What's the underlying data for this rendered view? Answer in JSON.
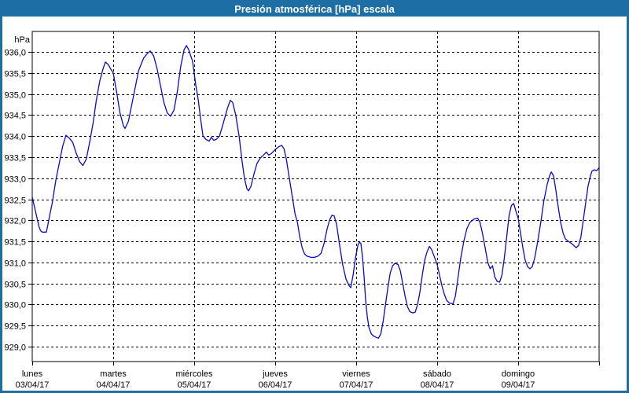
{
  "window": {
    "title": "Presión atmosférica [hPa] escala"
  },
  "colors": {
    "titlebar_bg": "#1c6ea4",
    "titlebar_text": "#ffffff",
    "frame_border": "#1c6ea4",
    "plot_background": "#ffffff",
    "line": "#0a0ac8",
    "grid": "#000000",
    "axis": "#000000",
    "text": "#000000"
  },
  "chart_data": {
    "type": "line",
    "title": "Presión atmosférica [hPa] escala",
    "grid": "dashed",
    "legend_position": "none",
    "y_axis": {
      "unit_label": "hPa",
      "min": 929.0,
      "max": 936.0,
      "tick_step": 0.5,
      "tick_labels_top_to_bottom": [
        "936,0",
        "935,5",
        "935,0",
        "934,5",
        "934,0",
        "933,5",
        "933,0",
        "932,5",
        "932,0",
        "931,5",
        "931,0",
        "930,5",
        "930,0",
        "929,5",
        "929,0"
      ]
    },
    "x_axis": {
      "range_hours": [
        0,
        168
      ],
      "days": [
        {
          "name": "lunes",
          "date": "03/04/17"
        },
        {
          "name": "martes",
          "date": "04/04/17"
        },
        {
          "name": "miércoles",
          "date": "05/04/17"
        },
        {
          "name": "jueves",
          "date": "06/04/17"
        },
        {
          "name": "viernes",
          "date": "07/04/17"
        },
        {
          "name": "sábado",
          "date": "08/04/17"
        },
        {
          "name": "domingo",
          "date": "09/04/17"
        }
      ]
    },
    "series": [
      {
        "name": "Presión atmosférica [hPa]",
        "hours": [
          0,
          1,
          2,
          2.5,
          3,
          4.2,
          5,
          6,
          7,
          8,
          9,
          10,
          11,
          12,
          13,
          14,
          15,
          16,
          17,
          18,
          19,
          20,
          21,
          21.7,
          22.5,
          23.2,
          24,
          25,
          26,
          27,
          27.5,
          28.5,
          30,
          31.5,
          33,
          34,
          35,
          36,
          37,
          38,
          39,
          40,
          41,
          42,
          43,
          44,
          45,
          45.7,
          46.4,
          47,
          47.5,
          48.5,
          49.2,
          49.9,
          50.6,
          51.5,
          52.4,
          53.1,
          53.8,
          54.5,
          55.5,
          56.6,
          57.8,
          58.7,
          59.4,
          60.3,
          61.3,
          62.2,
          62.9,
          63.6,
          64.1,
          64.8,
          65.7,
          66.6,
          67.6,
          68.5,
          69.4,
          70.1,
          70.8,
          72,
          72.9,
          73.9,
          74.6,
          75.3,
          76.2,
          77.2,
          77.9,
          78.6,
          79.3,
          80,
          80.7,
          81.4,
          82.6,
          83.7,
          84.7,
          85.6,
          86.5,
          87.4,
          88.1,
          88.8,
          89.5,
          90.2,
          91.1,
          92,
          93,
          93.9,
          94.4,
          95.1,
          95.8,
          96.5,
          96.9,
          97.4,
          97.9,
          98.4,
          98.8,
          99.3,
          99.8,
          100.5,
          101.2,
          101.9,
          102.6,
          103.3,
          104,
          104.7,
          105.4,
          106.1,
          106.8,
          107.5,
          108.4,
          109.1,
          109.8,
          110.5,
          111.2,
          111.9,
          112.8,
          113.5,
          114.2,
          114.9,
          115.6,
          116.3,
          117,
          117.7,
          118.4,
          119.1,
          120,
          120.7,
          121.4,
          122.1,
          122.8,
          123.7,
          124.7,
          125.4,
          126.1,
          127,
          127.9,
          128.8,
          129.7,
          130.9,
          132,
          132.7,
          133.4,
          134.1,
          135,
          135.7,
          136.4,
          137.1,
          137.8,
          138.5,
          139.2,
          139.9,
          140.6,
          141.3,
          142,
          142.7,
          143.4,
          144,
          144.7,
          145.4,
          146.1,
          146.8,
          147.5,
          148.2,
          148.9,
          149.8,
          150.7,
          151.6,
          152.6,
          153.3,
          153.8,
          154.5,
          155.2,
          155.9,
          156.6,
          157.3,
          158,
          158.9,
          159.8,
          160.5,
          161.2,
          161.9,
          162.6,
          163.3,
          164,
          164.7,
          165.4,
          165.9,
          166.6,
          167.3,
          168
        ],
        "hpa": [
          932.55,
          932.2,
          931.85,
          931.75,
          931.72,
          931.72,
          932.05,
          932.45,
          932.95,
          933.35,
          933.75,
          934.02,
          933.95,
          933.85,
          933.6,
          933.4,
          933.3,
          933.45,
          933.85,
          934.3,
          934.85,
          935.3,
          935.6,
          935.76,
          935.7,
          935.6,
          935.5,
          935.05,
          934.55,
          934.25,
          934.18,
          934.35,
          934.95,
          935.55,
          935.85,
          935.95,
          936.02,
          935.9,
          935.6,
          935.2,
          934.8,
          934.55,
          934.47,
          934.62,
          935.05,
          935.65,
          936.05,
          936.15,
          936.05,
          935.9,
          935.78,
          935.2,
          934.85,
          934.4,
          934.0,
          933.92,
          933.88,
          933.97,
          933.9,
          933.92,
          934.0,
          934.3,
          934.65,
          934.85,
          934.8,
          934.5,
          934.0,
          933.4,
          933.0,
          932.75,
          932.7,
          932.8,
          933.1,
          933.35,
          933.48,
          933.55,
          933.62,
          933.55,
          933.58,
          933.68,
          933.74,
          933.78,
          933.7,
          933.45,
          933.0,
          932.5,
          932.15,
          931.95,
          931.6,
          931.35,
          931.2,
          931.15,
          931.12,
          931.12,
          931.15,
          931.22,
          931.45,
          931.8,
          932.0,
          932.12,
          932.1,
          931.9,
          931.4,
          930.95,
          930.6,
          930.45,
          930.4,
          930.7,
          931.1,
          931.4,
          931.48,
          931.45,
          931.1,
          930.6,
          930.1,
          929.7,
          929.45,
          929.3,
          929.25,
          929.22,
          929.2,
          929.3,
          929.6,
          930.0,
          930.4,
          930.75,
          930.92,
          930.98,
          930.95,
          930.8,
          930.5,
          930.2,
          929.95,
          929.83,
          929.8,
          929.82,
          930.0,
          930.3,
          930.7,
          931.05,
          931.25,
          931.38,
          931.3,
          931.15,
          930.95,
          930.7,
          930.45,
          930.25,
          930.1,
          930.03,
          930.02,
          930.2,
          930.6,
          931.1,
          931.5,
          931.8,
          931.95,
          932.03,
          932.05,
          931.95,
          931.7,
          931.4,
          931.0,
          930.85,
          930.92,
          930.65,
          930.55,
          930.53,
          930.7,
          931.1,
          931.6,
          932.1,
          932.35,
          932.4,
          932.2,
          932.05,
          931.7,
          931.35,
          931.05,
          930.9,
          930.85,
          930.9,
          931.1,
          931.5,
          931.95,
          932.45,
          932.85,
          933.05,
          933.15,
          933.05,
          932.7,
          932.3,
          931.95,
          931.7,
          931.56,
          931.5,
          931.45,
          931.4,
          931.35,
          931.4,
          931.6,
          932.0,
          932.4,
          932.8,
          933.05,
          933.17,
          933.2,
          933.18,
          933.25
        ]
      }
    ]
  }
}
